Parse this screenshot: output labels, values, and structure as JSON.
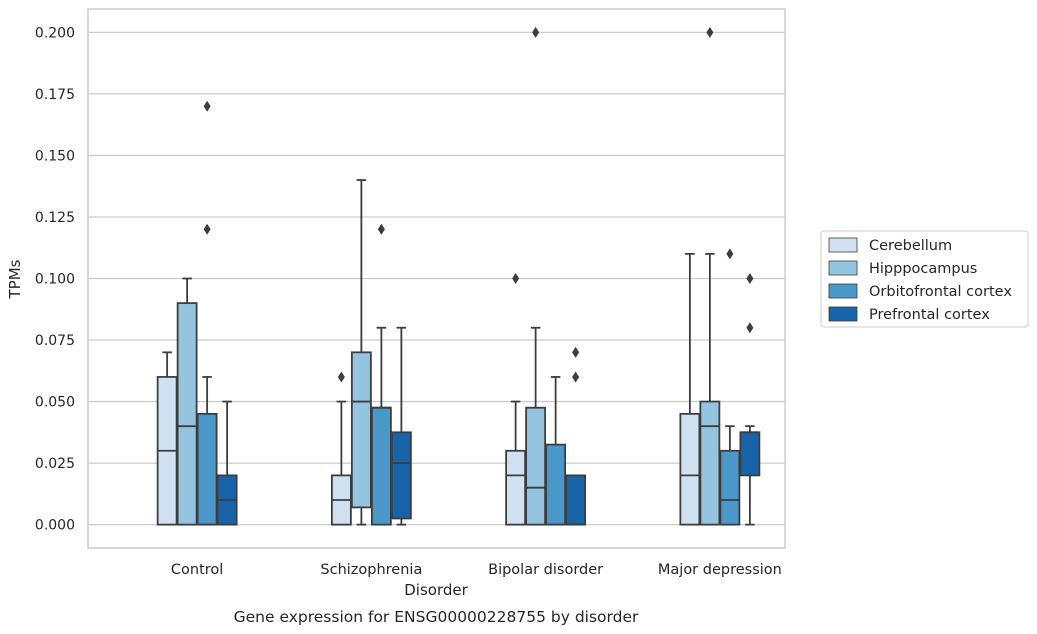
{
  "chart_data": {
    "type": "box",
    "title": "",
    "caption": "Gene expression for ENSG00000228755 by disorder",
    "xlabel": "Disorder",
    "ylabel": "TPMs",
    "ylim": [
      -0.0095,
      0.2095
    ],
    "yticks": [
      0.0,
      0.025,
      0.05,
      0.075,
      0.1,
      0.125,
      0.15,
      0.175,
      0.2
    ],
    "ytick_labels": [
      "0.000",
      "0.025",
      "0.050",
      "0.075",
      "0.100",
      "0.125",
      "0.150",
      "0.175",
      "0.200"
    ],
    "grid": "horizontal",
    "legend_position": "right",
    "categories": [
      "Control",
      "Schizophrenia",
      "Bipolar disorder",
      "Major depression"
    ],
    "series": [
      {
        "name": "Cerebellum",
        "color": "#d0e1f2",
        "boxes": [
          {
            "whislo": 0.0,
            "q1": 0.0,
            "med": 0.03,
            "q3": 0.06,
            "whishi": 0.07,
            "fliers": []
          },
          {
            "whislo": 0.0,
            "q1": 0.0,
            "med": 0.01,
            "q3": 0.02,
            "whishi": 0.05,
            "fliers": [
              0.06
            ]
          },
          {
            "whislo": 0.0,
            "q1": 0.0,
            "med": 0.02,
            "q3": 0.03,
            "whishi": 0.05,
            "fliers": [
              0.1
            ]
          },
          {
            "whislo": 0.0,
            "q1": 0.0,
            "med": 0.02,
            "q3": 0.045,
            "whishi": 0.11,
            "fliers": []
          }
        ]
      },
      {
        "name": "Hipppocampus",
        "color": "#94c4df",
        "boxes": [
          {
            "whislo": 0.0,
            "q1": 0.0,
            "med": 0.04,
            "q3": 0.09,
            "whishi": 0.1,
            "fliers": []
          },
          {
            "whislo": 0.0,
            "q1": 0.007,
            "med": 0.05,
            "q3": 0.07,
            "whishi": 0.14,
            "fliers": []
          },
          {
            "whislo": 0.0,
            "q1": 0.0,
            "med": 0.015,
            "q3": 0.0475,
            "whishi": 0.08,
            "fliers": [
              0.2
            ]
          },
          {
            "whislo": 0.0,
            "q1": 0.0,
            "med": 0.04,
            "q3": 0.05,
            "whishi": 0.11,
            "fliers": [
              0.2
            ]
          }
        ]
      },
      {
        "name": "Orbitofrontal cortex",
        "color": "#4a98c9",
        "boxes": [
          {
            "whislo": 0.0,
            "q1": 0.0,
            "med": 0.0,
            "q3": 0.045,
            "whishi": 0.06,
            "fliers": [
              0.17,
              0.12
            ]
          },
          {
            "whislo": 0.0,
            "q1": 0.0,
            "med": 0.0475,
            "q3": 0.0475,
            "whishi": 0.08,
            "fliers": [
              0.12
            ]
          },
          {
            "whislo": 0.0,
            "q1": 0.0,
            "med": 0.0,
            "q3": 0.0325,
            "whishi": 0.06,
            "fliers": []
          },
          {
            "whislo": 0.0,
            "q1": 0.0,
            "med": 0.01,
            "q3": 0.03,
            "whishi": 0.04,
            "fliers": [
              0.11
            ]
          }
        ]
      },
      {
        "name": "Prefrontal cortex",
        "color": "#1764ab",
        "boxes": [
          {
            "whislo": 0.0,
            "q1": 0.0,
            "med": 0.01,
            "q3": 0.02,
            "whishi": 0.05,
            "fliers": []
          },
          {
            "whislo": 0.0,
            "q1": 0.0025,
            "med": 0.025,
            "q3": 0.0375,
            "whishi": 0.08,
            "fliers": []
          },
          {
            "whislo": 0.0,
            "q1": 0.0,
            "med": 0.0,
            "q3": 0.02,
            "whishi": 0.02,
            "fliers": [
              0.07,
              0.06
            ]
          },
          {
            "whislo": 0.0,
            "q1": 0.02,
            "med": 0.0375,
            "q3": 0.0375,
            "whishi": 0.04,
            "fliers": [
              0.1,
              0.08
            ]
          }
        ]
      }
    ]
  }
}
